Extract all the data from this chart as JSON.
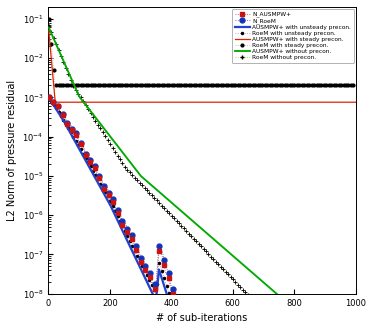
{
  "xlabel": "# of sub-iterations",
  "ylabel": "L2 Norm of pressure residual",
  "legend_entries": [
    "N_AUSMPW+",
    "N_RoeM",
    "AUSMPW+ with unsteady precon.",
    "RoeM with unsteady precon.",
    "AUSMPW+ with steady precon.",
    "RoeM with steady precon.",
    "AUSMPW+ without precon.",
    "RoeM without precon."
  ],
  "background": "#ffffff"
}
